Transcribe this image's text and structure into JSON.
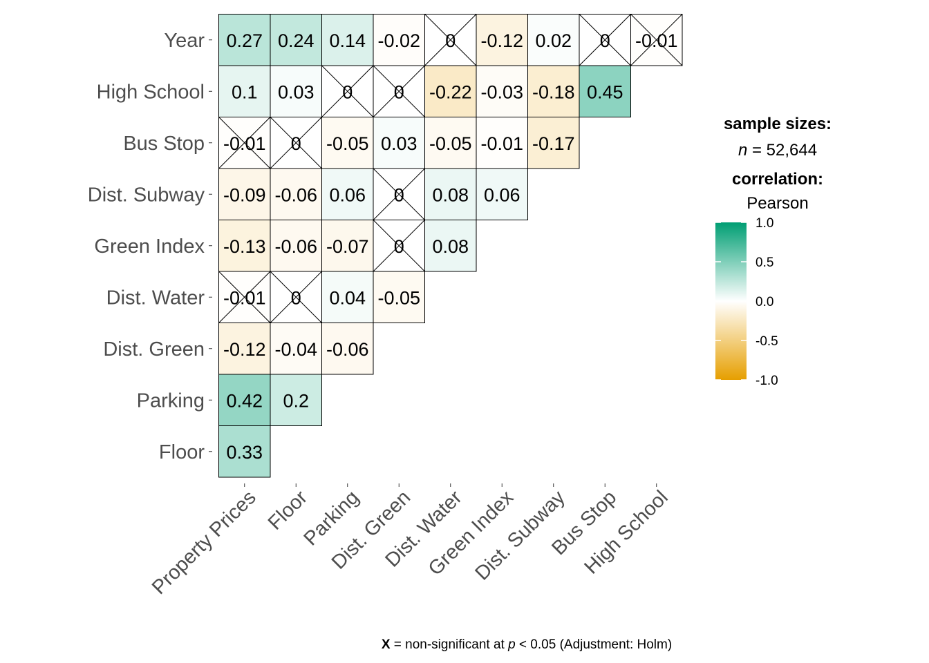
{
  "chart_data": {
    "type": "heatmap",
    "x_labels": [
      "Property Prices",
      "Floor",
      "Parking",
      "Dist. Green",
      "Dist. Water",
      "Green Index",
      "Dist. Subway",
      "Bus Stop",
      "High School"
    ],
    "y_labels": [
      "Floor",
      "Parking",
      "Dist. Green",
      "Dist. Water",
      "Green Index",
      "Dist. Subway",
      "Bus Stop",
      "High School",
      "Year"
    ],
    "cells": [
      {
        "y": "Year",
        "values": [
          {
            "label": "0.27",
            "v": 0.27,
            "ns": false
          },
          {
            "label": "0.24",
            "v": 0.24,
            "ns": false
          },
          {
            "label": "0.14",
            "v": 0.14,
            "ns": false
          },
          {
            "label": "-0.02",
            "v": -0.02,
            "ns": false
          },
          {
            "label": "0",
            "v": 0,
            "ns": true
          },
          {
            "label": "-0.12",
            "v": -0.12,
            "ns": false
          },
          {
            "label": "0.02",
            "v": 0.02,
            "ns": false
          },
          {
            "label": "0",
            "v": 0,
            "ns": true
          },
          {
            "label": "-0.01",
            "v": -0.01,
            "ns": true
          }
        ]
      },
      {
        "y": "High School",
        "values": [
          {
            "label": "0.1",
            "v": 0.1,
            "ns": false
          },
          {
            "label": "0.03",
            "v": 0.03,
            "ns": false
          },
          {
            "label": "0",
            "v": 0,
            "ns": true
          },
          {
            "label": "0",
            "v": 0,
            "ns": true
          },
          {
            "label": "-0.22",
            "v": -0.22,
            "ns": false
          },
          {
            "label": "-0.03",
            "v": -0.03,
            "ns": false
          },
          {
            "label": "-0.18",
            "v": -0.18,
            "ns": false
          },
          {
            "label": "0.45",
            "v": 0.45,
            "ns": false
          }
        ]
      },
      {
        "y": "Bus Stop",
        "values": [
          {
            "label": "-0.01",
            "v": -0.01,
            "ns": true
          },
          {
            "label": "0",
            "v": 0,
            "ns": true
          },
          {
            "label": "-0.05",
            "v": -0.05,
            "ns": false
          },
          {
            "label": "0.03",
            "v": 0.03,
            "ns": false
          },
          {
            "label": "-0.05",
            "v": -0.05,
            "ns": false
          },
          {
            "label": "-0.01",
            "v": -0.01,
            "ns": false
          },
          {
            "label": "-0.17",
            "v": -0.17,
            "ns": false
          }
        ]
      },
      {
        "y": "Dist. Subway",
        "values": [
          {
            "label": "-0.09",
            "v": -0.09,
            "ns": false
          },
          {
            "label": "-0.06",
            "v": -0.06,
            "ns": false
          },
          {
            "label": "0.06",
            "v": 0.06,
            "ns": false
          },
          {
            "label": "0",
            "v": 0,
            "ns": true
          },
          {
            "label": "0.08",
            "v": 0.08,
            "ns": false
          },
          {
            "label": "0.06",
            "v": 0.06,
            "ns": false
          }
        ]
      },
      {
        "y": "Green Index",
        "values": [
          {
            "label": "-0.13",
            "v": -0.13,
            "ns": false
          },
          {
            "label": "-0.06",
            "v": -0.06,
            "ns": false
          },
          {
            "label": "-0.07",
            "v": -0.07,
            "ns": false
          },
          {
            "label": "0",
            "v": 0,
            "ns": true
          },
          {
            "label": "0.08",
            "v": 0.08,
            "ns": false
          }
        ]
      },
      {
        "y": "Dist. Water",
        "values": [
          {
            "label": "-0.01",
            "v": -0.01,
            "ns": true
          },
          {
            "label": "0",
            "v": 0,
            "ns": true
          },
          {
            "label": "0.04",
            "v": 0.04,
            "ns": false
          },
          {
            "label": "-0.05",
            "v": -0.05,
            "ns": false
          }
        ]
      },
      {
        "y": "Dist. Green",
        "values": [
          {
            "label": "-0.12",
            "v": -0.12,
            "ns": false
          },
          {
            "label": "-0.04",
            "v": -0.04,
            "ns": false
          },
          {
            "label": "-0.06",
            "v": -0.06,
            "ns": false
          }
        ]
      },
      {
        "y": "Parking",
        "values": [
          {
            "label": "0.42",
            "v": 0.42,
            "ns": false
          },
          {
            "label": "0.2",
            "v": 0.2,
            "ns": false
          }
        ]
      },
      {
        "y": "Floor",
        "values": [
          {
            "label": "0.33",
            "v": 0.33,
            "ns": false
          }
        ]
      }
    ],
    "color_scale": {
      "low": "#E69F00",
      "mid": "#FFFFFF",
      "high": "#009E73",
      "range": [
        -1,
        1
      ]
    },
    "legend": {
      "title_1": "sample sizes:",
      "n_label": "n",
      "n_value": " = 52,644",
      "title_2": "correlation:",
      "method": "Pearson",
      "ticks": [
        "1.0",
        "0.5",
        "0.0",
        "-0.5",
        "-1.0"
      ],
      "tick_values": [
        1.0,
        0.5,
        0.0,
        -0.5,
        -1.0
      ]
    },
    "caption": {
      "mark": "X",
      "text_1": " = non-significant at ",
      "p": "p",
      "text_2": " < 0.05 (Adjustment: Holm)"
    }
  }
}
